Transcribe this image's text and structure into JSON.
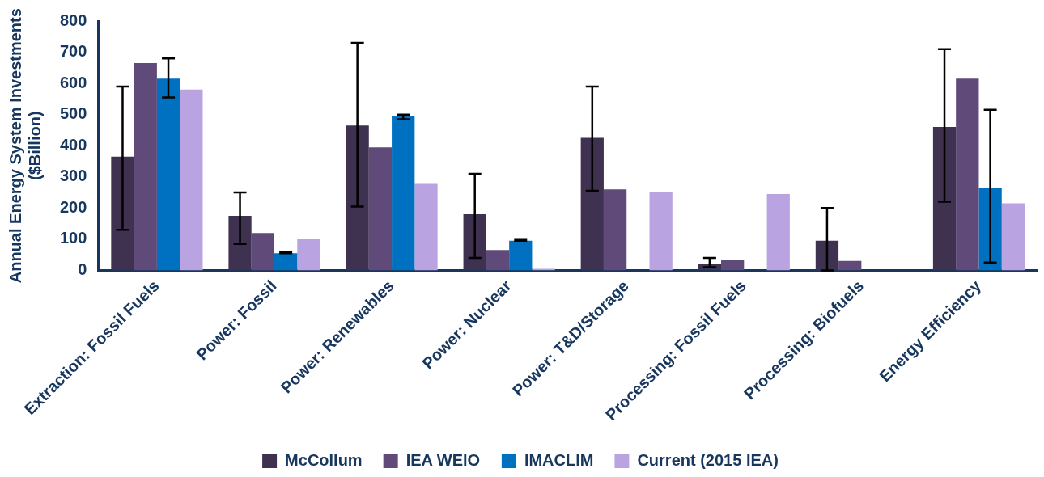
{
  "chart_data": {
    "type": "bar",
    "ylabel": "Annual Energy System Investments ($Billion)",
    "categories": [
      "Extraction: Fossil Fuels",
      "Power: Fossil",
      "Power: Renewables",
      "Power: Nuclear",
      "Power: T&D/Storage",
      "Processing: Fossil Fuels",
      "Processing: Biofuels",
      "Energy Efficiency"
    ],
    "series": [
      {
        "name": "McCollum",
        "color": "#3f3150",
        "values": [
          365,
          175,
          465,
          180,
          425,
          20,
          95,
          460
        ],
        "errors": [
          [
            130,
            590
          ],
          [
            85,
            250
          ],
          [
            205,
            730
          ],
          [
            40,
            310
          ],
          [
            255,
            590
          ],
          [
            10,
            40
          ],
          [
            0,
            200
          ],
          [
            220,
            710
          ]
        ]
      },
      {
        "name": "IEA WEIO",
        "color": "#5f4a7a",
        "values": [
          665,
          120,
          395,
          65,
          260,
          35,
          30,
          615
        ]
      },
      {
        "name": "IMACLIM",
        "color": "#0070c0",
        "values": [
          615,
          55,
          495,
          95,
          null,
          null,
          null,
          265
        ],
        "errors": [
          [
            555,
            680
          ],
          [
            55,
            60
          ],
          [
            485,
            500
          ],
          [
            95,
            100
          ],
          null,
          null,
          null,
          [
            25,
            515
          ]
        ]
      },
      {
        "name": "Current (2015 IEA)",
        "color": "#b9a3e0",
        "values": [
          580,
          100,
          280,
          5,
          250,
          245,
          null,
          215
        ]
      }
    ],
    "ylim": [
      0,
      800
    ],
    "yticks": [
      0,
      100,
      200,
      300,
      400,
      500,
      600,
      700,
      800
    ],
    "grid": false,
    "legend": "bottom"
  }
}
